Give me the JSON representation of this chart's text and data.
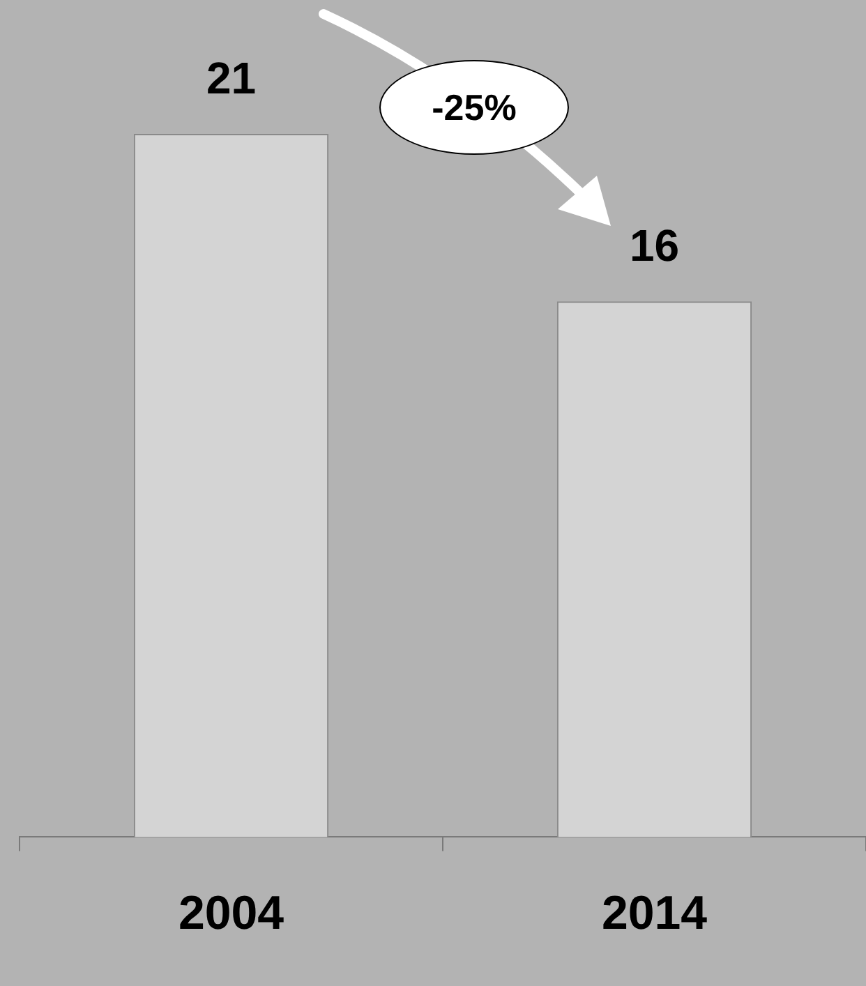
{
  "chart_data": {
    "type": "bar",
    "categories": [
      "2004",
      "2014"
    ],
    "values": [
      21,
      16
    ],
    "color": "#d4d4d4",
    "data_labels": true,
    "annotations": [
      "-25%"
    ]
  }
}
